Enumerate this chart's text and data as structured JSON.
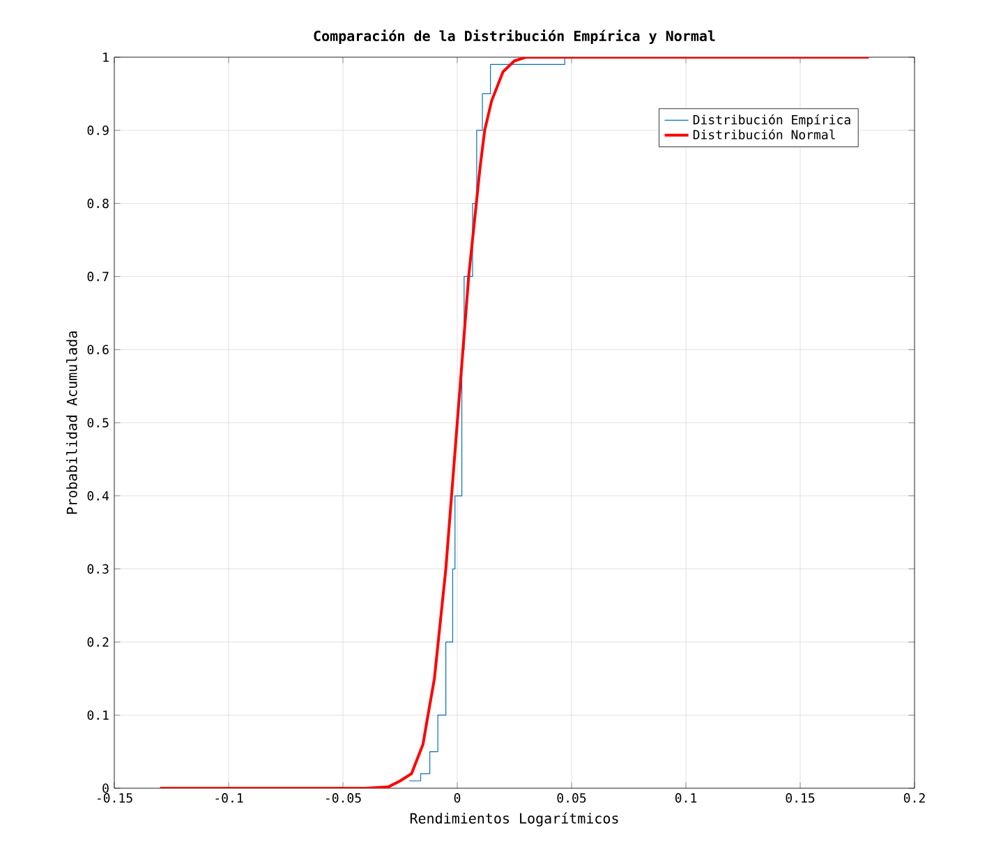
{
  "chart_data": {
    "type": "line",
    "title": "Comparación de la Distribución Empírica y Normal",
    "xlabel": "Rendimientos Logarítmicos",
    "ylabel": "Probabilidad Acumulada",
    "xlim": [
      -0.15,
      0.2
    ],
    "ylim": [
      0,
      1
    ],
    "xticks": [
      -0.15,
      -0.1,
      -0.05,
      0,
      0.05,
      0.1,
      0.15,
      0.2
    ],
    "yticks": [
      0,
      0.1,
      0.2,
      0.3,
      0.4,
      0.5,
      0.6,
      0.7,
      0.8,
      0.9,
      1
    ],
    "grid": true,
    "legend": "top right",
    "series": [
      {
        "name": "Distribución Empírica",
        "type": "step",
        "color": "#0072bd",
        "x": [
          -0.021,
          -0.016,
          -0.012,
          -0.0085,
          -0.005,
          -0.002,
          -0.001,
          0.002,
          0.003,
          0.0067,
          0.0085,
          0.011,
          0.0145,
          0.047
        ],
        "values": [
          0.01,
          0.02,
          0.05,
          0.1,
          0.2,
          0.3,
          0.4,
          0.6,
          0.7,
          0.8,
          0.9,
          0.95,
          0.99,
          1
        ]
      },
      {
        "name": "Distribución Normal",
        "color": "#ff0000",
        "x": [
          -0.13,
          -0.04,
          -0.03,
          -0.025,
          -0.02,
          -0.015,
          -0.0128,
          -0.01,
          -0.005,
          0,
          0.005,
          0.01,
          0.012,
          0.015,
          0.02,
          0.025,
          0.03,
          0.18
        ],
        "values": [
          0,
          0,
          0.002,
          0.01,
          0.02,
          0.06,
          0.1,
          0.15,
          0.3,
          0.5,
          0.7,
          0.85,
          0.9,
          0.94,
          0.98,
          0.995,
          1,
          1
        ]
      }
    ]
  }
}
